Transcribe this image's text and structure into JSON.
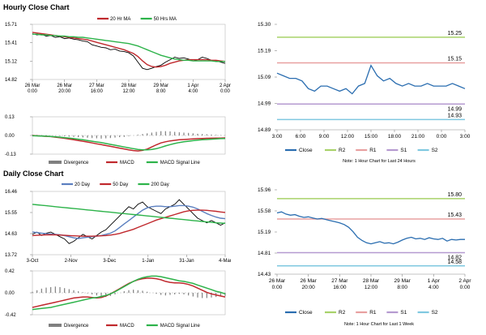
{
  "hourly_title": "Hourly Close Chart",
  "daily_title": "Daily Close Chart",
  "chart_data": [
    {
      "id": "hourly-price",
      "type": "line",
      "legend": [
        "20 Hr MA",
        "50 Hrs MA"
      ],
      "yticks": [
        "15.71",
        "15.41",
        "15.12",
        "14.82"
      ],
      "ylim": [
        14.82,
        15.71
      ],
      "xticks": [
        [
          "26 Mar",
          "0:00"
        ],
        [
          "26 Mar",
          "20:00"
        ],
        [
          "27 Mar",
          "16:00"
        ],
        [
          "28 Mar",
          "12:00"
        ],
        [
          "29 Mar",
          "8:00"
        ],
        [
          "1 Apr",
          "4:00"
        ],
        [
          "2 Apr",
          "0:00"
        ]
      ],
      "series": [
        {
          "name": "Close",
          "color": "#000000",
          "values": [
            15.56,
            15.54,
            15.55,
            15.52,
            15.53,
            15.5,
            15.51,
            15.48,
            15.49,
            15.47,
            15.46,
            15.44,
            15.43,
            15.38,
            15.36,
            15.34,
            15.33,
            15.3,
            15.31,
            15.28,
            15.27,
            15.25,
            15.2,
            15.1,
            15.0,
            14.98,
            15.0,
            15.03,
            15.05,
            15.1,
            15.14,
            15.18,
            15.16,
            15.17,
            15.15,
            15.12,
            15.14,
            15.18,
            15.16,
            15.13,
            15.12,
            15.1,
            15.08
          ]
        },
        {
          "name": "20 Hr MA",
          "color": "#c0282d",
          "values": [
            15.58,
            15.57,
            15.56,
            15.55,
            15.54,
            15.53,
            15.52,
            15.51,
            15.5,
            15.49,
            15.48,
            15.47,
            15.46,
            15.44,
            15.42,
            15.4,
            15.38,
            15.36,
            15.34,
            15.32,
            15.3,
            15.27,
            15.24,
            15.19,
            15.12,
            15.06,
            15.03,
            15.02,
            15.03,
            15.05,
            15.08,
            15.1,
            15.12,
            15.13,
            15.14,
            15.14,
            15.14,
            15.14,
            15.14,
            15.13,
            15.13,
            15.12,
            15.11
          ]
        },
        {
          "name": "50 Hrs MA",
          "color": "#2db34a",
          "values": [
            15.55,
            15.55,
            15.54,
            15.54,
            15.53,
            15.53,
            15.52,
            15.52,
            15.51,
            15.51,
            15.5,
            15.5,
            15.49,
            15.48,
            15.47,
            15.46,
            15.45,
            15.44,
            15.43,
            15.42,
            15.41,
            15.4,
            15.38,
            15.36,
            15.33,
            15.3,
            15.27,
            15.24,
            15.21,
            15.19,
            15.17,
            15.15,
            15.14,
            15.13,
            15.13,
            15.12,
            15.12,
            15.12,
            15.12,
            15.12,
            15.11,
            15.11,
            15.11
          ]
        }
      ]
    },
    {
      "id": "hourly-macd",
      "type": "line",
      "legend": [
        "Divergence",
        "MACD",
        "MACD Signal Line"
      ],
      "yticks": [
        "0.13",
        "0.00",
        "-0.13"
      ],
      "ylim": [
        -0.13,
        0.13
      ],
      "series": [
        {
          "name": "Divergence",
          "color": "#808080",
          "values": [
            0.005,
            0.004,
            0.003,
            0.002,
            0.001,
            -0.002,
            -0.004,
            -0.006,
            -0.008,
            -0.01,
            -0.012,
            -0.014,
            -0.016,
            -0.018,
            -0.02,
            -0.022,
            -0.02,
            -0.018,
            -0.015,
            -0.012,
            -0.01,
            -0.005,
            0.0,
            0.005,
            0.01,
            0.015,
            0.02,
            0.025,
            0.03,
            0.03,
            0.028,
            0.025,
            0.022,
            0.02,
            0.018,
            0.015,
            0.012,
            0.01,
            0.008,
            0.006,
            0.004,
            0.002,
            0.001
          ]
        },
        {
          "name": "MACD",
          "color": "#c0282d",
          "values": [
            0.0,
            -0.002,
            -0.004,
            -0.006,
            -0.008,
            -0.012,
            -0.016,
            -0.02,
            -0.025,
            -0.03,
            -0.035,
            -0.04,
            -0.046,
            -0.052,
            -0.058,
            -0.064,
            -0.07,
            -0.076,
            -0.082,
            -0.088,
            -0.094,
            -0.1,
            -0.105,
            -0.108,
            -0.104,
            -0.095,
            -0.08,
            -0.065,
            -0.052,
            -0.044,
            -0.038,
            -0.034,
            -0.03,
            -0.028,
            -0.026,
            -0.024,
            -0.022,
            -0.021,
            -0.02,
            -0.019,
            -0.018,
            -0.018,
            -0.017
          ]
        },
        {
          "name": "MACD Signal Line",
          "color": "#2db34a",
          "values": [
            -0.002,
            -0.003,
            -0.004,
            -0.005,
            -0.007,
            -0.009,
            -0.012,
            -0.015,
            -0.018,
            -0.022,
            -0.026,
            -0.03,
            -0.035,
            -0.04,
            -0.045,
            -0.05,
            -0.056,
            -0.062,
            -0.068,
            -0.074,
            -0.08,
            -0.086,
            -0.092,
            -0.097,
            -0.1,
            -0.1,
            -0.098,
            -0.092,
            -0.083,
            -0.073,
            -0.064,
            -0.056,
            -0.049,
            -0.044,
            -0.04,
            -0.036,
            -0.033,
            -0.03,
            -0.028,
            -0.026,
            -0.024,
            -0.022,
            -0.021
          ]
        }
      ]
    },
    {
      "id": "hourly-pivot",
      "type": "line",
      "yticks": [
        "15.30",
        "15.19",
        "15.09",
        "14.99",
        "14.89"
      ],
      "ylim": [
        14.89,
        15.3
      ],
      "xticks": [
        "3:00",
        "6:00",
        "9:00",
        "12:00",
        "15:00",
        "18:00",
        "21:00",
        "0:00",
        "3:00"
      ],
      "levels": [
        {
          "name": "R2",
          "value": 15.25,
          "label": "15.25",
          "color": "#a8d26a"
        },
        {
          "name": "R1",
          "value": 15.15,
          "label": "15.15",
          "color": "#e8a0a0"
        },
        {
          "name": "S1",
          "value": 14.99,
          "label": "14.99",
          "color": "#b59ad0"
        },
        {
          "name": "S2",
          "value": 14.93,
          "label": "14.93",
          "color": "#7fc8e0"
        }
      ],
      "series": [
        {
          "name": "Close",
          "color": "#2a6db0",
          "values": [
            15.11,
            15.1,
            15.09,
            15.09,
            15.08,
            15.05,
            15.04,
            15.06,
            15.06,
            15.05,
            15.04,
            15.05,
            15.03,
            15.06,
            15.07,
            15.14,
            15.1,
            15.08,
            15.09,
            15.07,
            15.06,
            15.07,
            15.06,
            15.06,
            15.07,
            15.06,
            15.06,
            15.06,
            15.07,
            15.06,
            15.05
          ]
        }
      ],
      "legend": [
        "Close",
        "R2",
        "R1",
        "S1",
        "S2"
      ],
      "note": "Note: 1 Hour Chart for Last 24 Hours"
    },
    {
      "id": "daily-price",
      "type": "line",
      "legend": [
        "20 Day",
        "50 Day",
        "200 Day"
      ],
      "yticks": [
        "16.46",
        "15.55",
        "14.63",
        "13.72"
      ],
      "ylim": [
        13.72,
        16.46
      ],
      "xticks": [
        "3-Oct",
        "2-Nov",
        "3-Dec",
        "1-Jan",
        "31-Jan",
        "4-Mar"
      ],
      "series": [
        {
          "name": "Close",
          "color": "#000000",
          "values": [
            14.6,
            14.7,
            14.55,
            14.65,
            14.7,
            14.6,
            14.5,
            14.4,
            14.2,
            14.3,
            14.45,
            14.6,
            14.5,
            14.4,
            14.55,
            14.7,
            14.8,
            15.0,
            15.2,
            15.4,
            15.6,
            15.8,
            15.7,
            15.9,
            16.0,
            15.8,
            15.7,
            15.6,
            15.5,
            15.7,
            15.8,
            15.9,
            16.1,
            15.9,
            15.7,
            15.5,
            15.3,
            15.2,
            15.1,
            15.2,
            15.1,
            15.0,
            15.1
          ]
        },
        {
          "name": "20 Day",
          "color": "#5b7fbf",
          "values": [
            14.7,
            14.68,
            14.65,
            14.63,
            14.62,
            14.6,
            14.58,
            14.55,
            14.5,
            14.45,
            14.42,
            14.45,
            14.48,
            14.5,
            14.52,
            14.55,
            14.6,
            14.65,
            14.75,
            14.9,
            15.05,
            15.2,
            15.35,
            15.5,
            15.65,
            15.75,
            15.8,
            15.82,
            15.82,
            15.8,
            15.8,
            15.82,
            15.85,
            15.85,
            15.82,
            15.78,
            15.7,
            15.6,
            15.5,
            15.42,
            15.35,
            15.3,
            15.28
          ]
        },
        {
          "name": "50 Day",
          "color": "#c0282d",
          "values": [
            14.55,
            14.56,
            14.57,
            14.58,
            14.58,
            14.58,
            14.57,
            14.56,
            14.55,
            14.54,
            14.53,
            14.52,
            14.52,
            14.52,
            14.53,
            14.54,
            14.55,
            14.57,
            14.6,
            14.64,
            14.7,
            14.76,
            14.82,
            14.9,
            14.98,
            15.06,
            15.14,
            15.22,
            15.28,
            15.34,
            15.4,
            15.46,
            15.52,
            15.58,
            15.62,
            15.64,
            15.65,
            15.65,
            15.64,
            15.62,
            15.6,
            15.57,
            15.55
          ]
        },
        {
          "name": "200 Day",
          "color": "#2db34a",
          "values": [
            15.9,
            15.88,
            15.86,
            15.84,
            15.82,
            15.8,
            15.78,
            15.76,
            15.74,
            15.72,
            15.7,
            15.68,
            15.66,
            15.64,
            15.62,
            15.6,
            15.58,
            15.56,
            15.54,
            15.52,
            15.5,
            15.48,
            15.46,
            15.44,
            15.42,
            15.4,
            15.38,
            15.36,
            15.34,
            15.32,
            15.3,
            15.28,
            15.26,
            15.24,
            15.22,
            15.2,
            15.18,
            15.16,
            15.14,
            15.12,
            15.1,
            15.09,
            15.08
          ]
        }
      ]
    },
    {
      "id": "daily-macd",
      "type": "line",
      "legend": [
        "Divergence",
        "MACD",
        "MACD Signal Line"
      ],
      "yticks": [
        "0.42",
        "0.00",
        "-0.42"
      ],
      "ylim": [
        -0.42,
        0.42
      ],
      "series": [
        {
          "name": "Divergence",
          "color": "#808080",
          "values": [
            0.02,
            0.05,
            0.08,
            0.1,
            0.11,
            0.12,
            0.11,
            0.09,
            0.07,
            0.05,
            0.03,
            0.01,
            -0.01,
            -0.03,
            -0.05,
            -0.07,
            -0.08,
            -0.06,
            -0.03,
            0.0,
            0.03,
            0.05,
            0.06,
            0.05,
            0.04,
            0.02,
            0.0,
            -0.02,
            -0.04,
            -0.05,
            -0.04,
            -0.03,
            -0.02,
            -0.03,
            -0.05,
            -0.07,
            -0.09,
            -0.1,
            -0.1,
            -0.09,
            -0.08,
            -0.07,
            -0.06
          ]
        },
        {
          "name": "MACD",
          "color": "#c0282d",
          "values": [
            -0.28,
            -0.26,
            -0.24,
            -0.22,
            -0.2,
            -0.18,
            -0.16,
            -0.14,
            -0.12,
            -0.1,
            -0.09,
            -0.08,
            -0.08,
            -0.09,
            -0.1,
            -0.09,
            -0.06,
            -0.02,
            0.03,
            0.08,
            0.13,
            0.18,
            0.22,
            0.25,
            0.27,
            0.28,
            0.28,
            0.27,
            0.25,
            0.22,
            0.2,
            0.19,
            0.19,
            0.18,
            0.16,
            0.13,
            0.09,
            0.05,
            0.01,
            -0.02,
            -0.04,
            -0.06,
            -0.08
          ]
        },
        {
          "name": "MACD Signal Line",
          "color": "#2db34a",
          "values": [
            -0.32,
            -0.31,
            -0.3,
            -0.29,
            -0.28,
            -0.26,
            -0.24,
            -0.22,
            -0.2,
            -0.18,
            -0.16,
            -0.14,
            -0.12,
            -0.1,
            -0.09,
            -0.07,
            -0.05,
            -0.02,
            0.02,
            0.07,
            0.12,
            0.17,
            0.22,
            0.26,
            0.29,
            0.31,
            0.32,
            0.32,
            0.31,
            0.29,
            0.27,
            0.25,
            0.23,
            0.22,
            0.2,
            0.18,
            0.15,
            0.12,
            0.09,
            0.06,
            0.03,
            0.01,
            -0.02
          ]
        }
      ]
    },
    {
      "id": "daily-pivot",
      "type": "line",
      "yticks": [
        "15.96",
        "15.58",
        "15.19",
        "14.81",
        "14.43"
      ],
      "ylim": [
        14.43,
        15.96
      ],
      "xticks": [
        [
          "26 Mar",
          "0:00"
        ],
        [
          "26 Mar",
          "20:00"
        ],
        [
          "27 Mar",
          "16:00"
        ],
        [
          "28 Mar",
          "12:00"
        ],
        [
          "29 Mar",
          "8:00"
        ],
        [
          "1 Apr",
          "4:00"
        ],
        [
          "2 Apr",
          "0:00"
        ]
      ],
      "levels": [
        {
          "name": "R2",
          "value": 15.8,
          "label": "15.80",
          "color": "#a8d26a"
        },
        {
          "name": "R1",
          "value": 15.43,
          "label": "15.43",
          "color": "#e8a0a0"
        },
        {
          "name": "S1",
          "value": 14.82,
          "label": "14.82",
          "color": "#b59ad0"
        },
        {
          "name": "S2",
          "value": 14.58,
          "label": "14.58",
          "color": "#7fc8e0"
        }
      ],
      "series": [
        {
          "name": "Close",
          "color": "#2a6db0",
          "values": [
            15.54,
            15.56,
            15.52,
            15.5,
            15.51,
            15.48,
            15.46,
            15.47,
            15.45,
            15.43,
            15.44,
            15.42,
            15.4,
            15.38,
            15.36,
            15.33,
            15.28,
            15.2,
            15.1,
            15.04,
            15.0,
            14.98,
            15.0,
            15.02,
            14.99,
            15.0,
            14.98,
            15.01,
            15.05,
            15.08,
            15.1,
            15.07,
            15.08,
            15.06,
            15.09,
            15.07,
            15.06,
            15.08,
            15.03,
            15.06,
            15.05,
            15.06,
            15.06
          ]
        }
      ],
      "legend": [
        "Close",
        "R2",
        "R1",
        "S1",
        "S2"
      ],
      "note": "Note: 1 Hour Chart for Last 1 Week"
    }
  ]
}
